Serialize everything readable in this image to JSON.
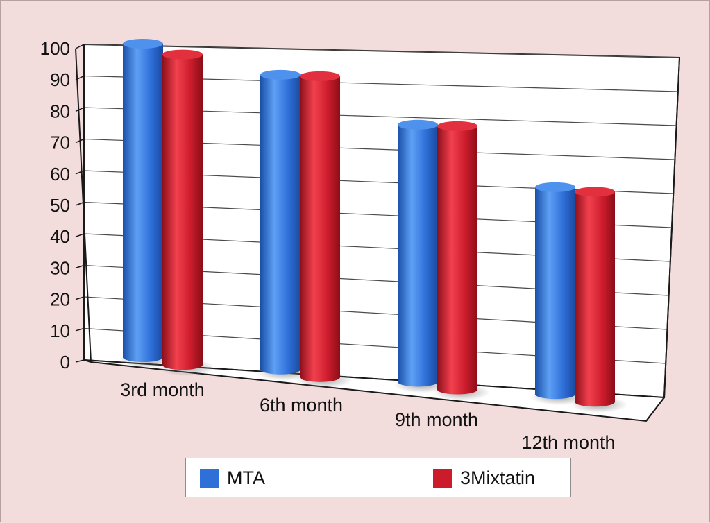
{
  "chart_data": {
    "type": "bar",
    "categories": [
      "3rd month",
      "6th month",
      "9th month",
      "12th month"
    ],
    "series": [
      {
        "name": "MTA",
        "values": [
          100,
          94,
          82,
          66
        ],
        "color": "#2e6fd8"
      },
      {
        "name": "3Mixtatin",
        "values": [
          99,
          96,
          84,
          67
        ],
        "color": "#cc1c2c"
      }
    ],
    "ylim": [
      0,
      100
    ],
    "yticks": [
      0,
      10,
      20,
      30,
      40,
      50,
      60,
      70,
      80,
      90,
      100
    ],
    "grid": true,
    "legend_position": "bottom",
    "style": "3d-cylinder",
    "title": "",
    "xlabel": "",
    "ylabel": ""
  }
}
